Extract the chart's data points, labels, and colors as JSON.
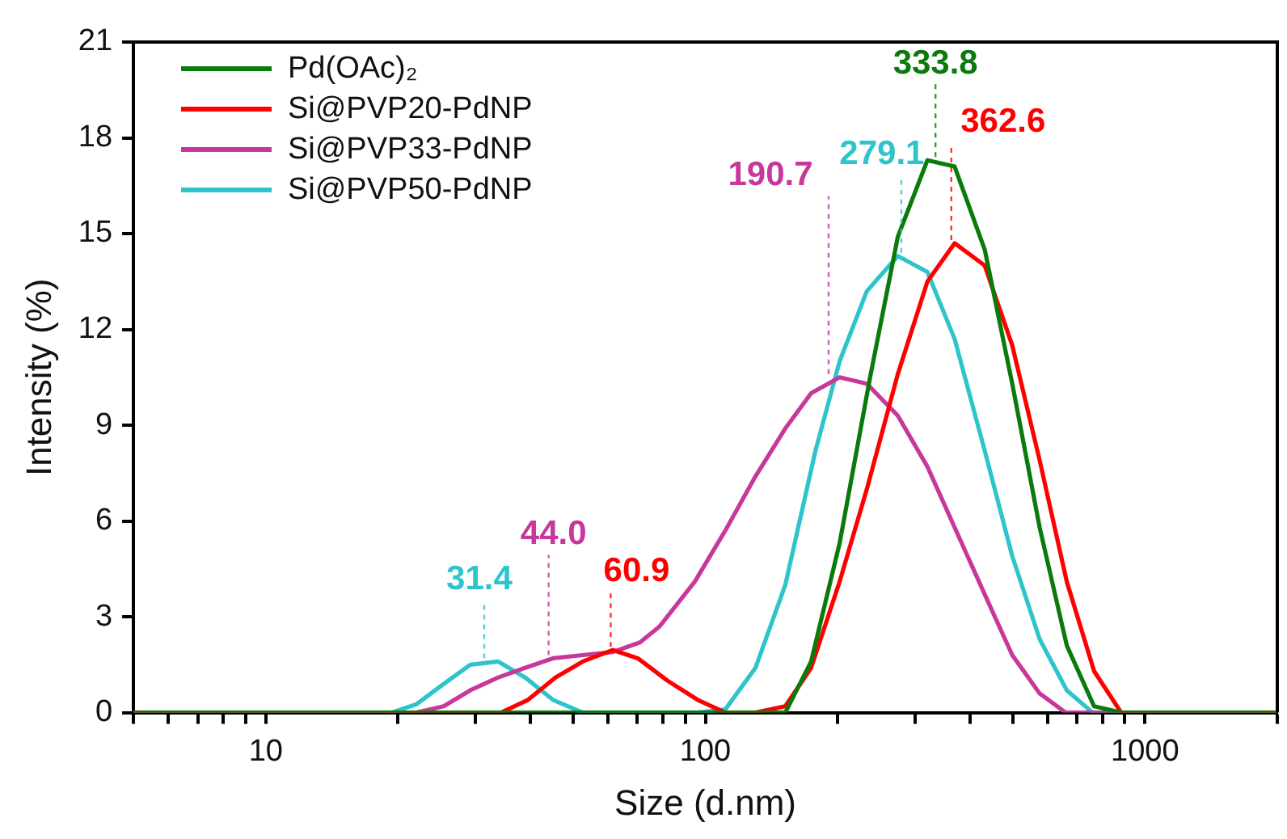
{
  "chart_data": {
    "type": "line",
    "xlabel": "Size (d.nm)",
    "ylabel": "Intensity (%)",
    "log": "x",
    "grid": false,
    "legend": "top left",
    "marker": "none",
    "line_style": "solid",
    "xlim": [
      5,
      2000
    ],
    "ylim": [
      0,
      21
    ],
    "xticks": [
      {
        "value": 5,
        "label": null
      },
      {
        "value": 6,
        "label": null
      },
      {
        "value": 7,
        "label": null
      },
      {
        "value": 8,
        "label": null
      },
      {
        "value": 9,
        "label": null
      },
      10,
      {
        "value": 20,
        "label": null
      },
      {
        "value": 30,
        "label": null
      },
      {
        "value": 40,
        "label": null
      },
      {
        "value": 50,
        "label": null
      },
      {
        "value": 60,
        "label": null
      },
      {
        "value": 70,
        "label": null
      },
      {
        "value": 80,
        "label": null
      },
      {
        "value": 90,
        "label": null
      },
      100,
      {
        "value": 200,
        "label": null
      },
      {
        "value": 300,
        "label": null
      },
      {
        "value": 400,
        "label": null
      },
      {
        "value": 500,
        "label": null
      },
      {
        "value": 600,
        "label": null
      },
      {
        "value": 700,
        "label": null
      },
      {
        "value": 800,
        "label": null
      },
      {
        "value": 900,
        "label": null
      },
      1000,
      {
        "value": 2000,
        "label": null
      }
    ],
    "yticks": [
      0,
      3,
      6,
      9,
      12,
      15,
      18,
      21
    ],
    "series": [
      {
        "name": "Pd(OAc)₂",
        "color": "#0a7a0a",
        "x": [
          5,
          130,
          152,
          174,
          202,
          237,
          274,
          320,
          369,
          432,
          499,
          576,
          664,
          766,
          883,
          2000
        ],
        "values": [
          0,
          0,
          0,
          1.6,
          5.3,
          10.5,
          14.9,
          17.3,
          17.1,
          14.5,
          10.3,
          5.8,
          2.1,
          0.2,
          0,
          0
        ]
      },
      {
        "name": "Si@PVP20-PdNP",
        "color": "#ff0000",
        "x": [
          5,
          34.3,
          39.5,
          45.6,
          52.6,
          61.6,
          70.2,
          82,
          96,
          111,
          130,
          152,
          174,
          202,
          233,
          274,
          320,
          369,
          432,
          499,
          576,
          664,
          766,
          883,
          2000
        ],
        "values": [
          0,
          0,
          0.4,
          1.1,
          1.6,
          1.96,
          1.7,
          1.0,
          0.4,
          0,
          0,
          0.2,
          1.4,
          4.1,
          7.0,
          10.6,
          13.5,
          14.7,
          14.0,
          11.5,
          7.9,
          4.1,
          1.3,
          0,
          0
        ]
      },
      {
        "name": "Si@PVP33-PdNP",
        "color": "#c8379b",
        "x": [
          5,
          22,
          25.4,
          29.2,
          33.8,
          38.9,
          45,
          52.6,
          61.6,
          71,
          78.7,
          94.6,
          111,
          130,
          152,
          174,
          202,
          233,
          274,
          320,
          369,
          432,
          499,
          576,
          660,
          2000
        ],
        "values": [
          0,
          0,
          0.2,
          0.7,
          1.1,
          1.4,
          1.7,
          1.8,
          1.9,
          2.2,
          2.7,
          4.1,
          5.7,
          7.4,
          8.9,
          10.0,
          10.5,
          10.3,
          9.3,
          7.7,
          5.8,
          3.7,
          1.8,
          0.6,
          0,
          0
        ]
      },
      {
        "name": "Si@PVP50-PdNP",
        "color": "#2ec4cc",
        "x": [
          5,
          19.3,
          22,
          25.4,
          29.2,
          33.8,
          38.9,
          45,
          52.6,
          96,
          111,
          130,
          152,
          178,
          202,
          233,
          274,
          320,
          369,
          432,
          499,
          576,
          664,
          760,
          2000
        ],
        "values": [
          0,
          0,
          0.26,
          0.9,
          1.5,
          1.6,
          1.1,
          0.4,
          0,
          0,
          0.1,
          1.4,
          4.0,
          8.2,
          11.0,
          13.2,
          14.3,
          13.8,
          11.7,
          8.2,
          4.9,
          2.3,
          0.7,
          0,
          0
        ]
      }
    ],
    "annotations": [
      {
        "text": "333.8",
        "x": 333.8,
        "y": 17.3
      },
      {
        "text": "362.6",
        "x": 362.6,
        "y": 14.7
      },
      {
        "text": "279.1",
        "x": 279.1,
        "y": 14.3
      },
      {
        "text": "190.7",
        "x": 190.7,
        "y": 10.5
      },
      {
        "text": "60.9",
        "x": 60.9,
        "y": 1.96
      },
      {
        "text": "44.0",
        "x": 44.0,
        "y": 1.7
      },
      {
        "text": "31.4",
        "x": 31.4,
        "y": 1.6
      }
    ]
  }
}
